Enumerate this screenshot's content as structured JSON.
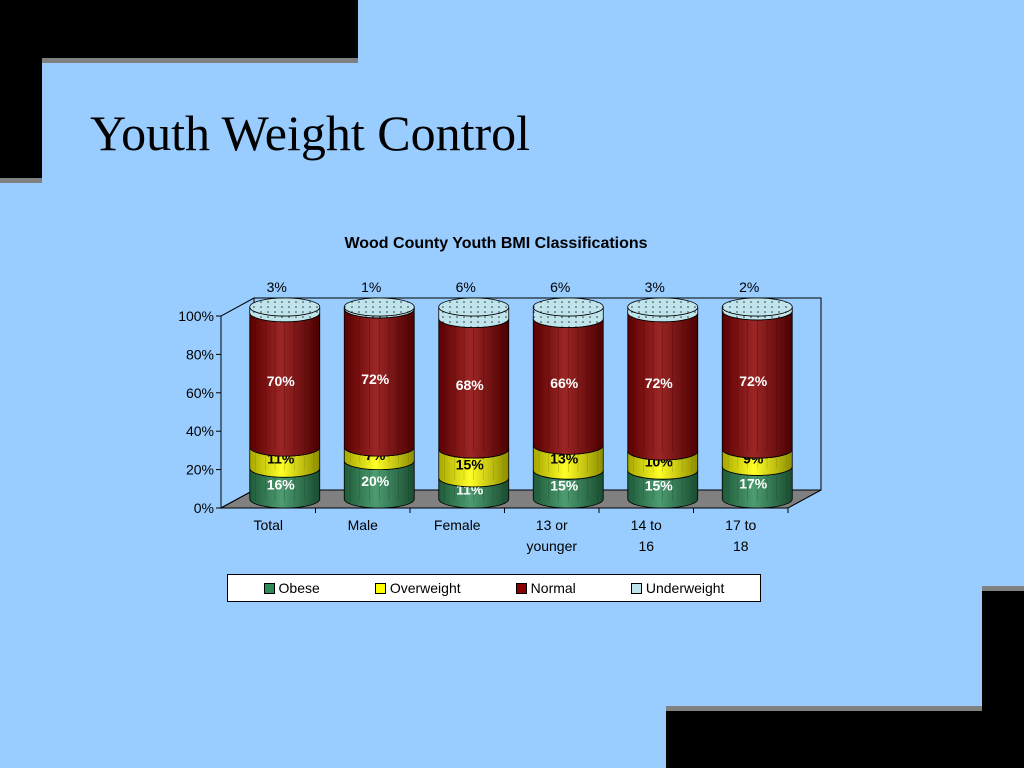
{
  "slide": {
    "title": "Youth Weight Control"
  },
  "colors": {
    "background": "#99ccff",
    "obese": "#2e8b57",
    "overweight": "#ffff00",
    "normal": "#8b0000",
    "underweight": "#bfe4ec"
  },
  "chart_data": {
    "type": "bar",
    "stacked": true,
    "three_d": "cylinder",
    "title": "Wood County Youth BMI Classifications",
    "categories": [
      "Total",
      "Male",
      "Female",
      "13 or younger",
      "14 to 16",
      "17 to 18"
    ],
    "series": [
      {
        "name": "Obese",
        "values": [
          16,
          20,
          11,
          15,
          15,
          17
        ],
        "labels": [
          "16%",
          "20%",
          "11%",
          "15%",
          "15%",
          "17%"
        ]
      },
      {
        "name": "Overweight",
        "values": [
          11,
          7,
          15,
          13,
          10,
          9
        ],
        "labels": [
          "11%",
          "7%",
          "15%",
          "13%",
          "10%",
          "9%"
        ]
      },
      {
        "name": "Normal",
        "values": [
          70,
          72,
          68,
          66,
          72,
          72
        ],
        "labels": [
          "70%",
          "72%",
          "68%",
          "66%",
          "72%",
          "72%"
        ]
      },
      {
        "name": "Underweight",
        "values": [
          3,
          1,
          6,
          6,
          3,
          2
        ],
        "labels": [
          "3%",
          "1%",
          "6%",
          "6%",
          "3%",
          "2%"
        ]
      }
    ],
    "yticks": [
      "0%",
      "20%",
      "40%",
      "60%",
      "80%",
      "100%"
    ],
    "ylim": [
      0,
      100
    ],
    "legend_position": "bottom"
  }
}
